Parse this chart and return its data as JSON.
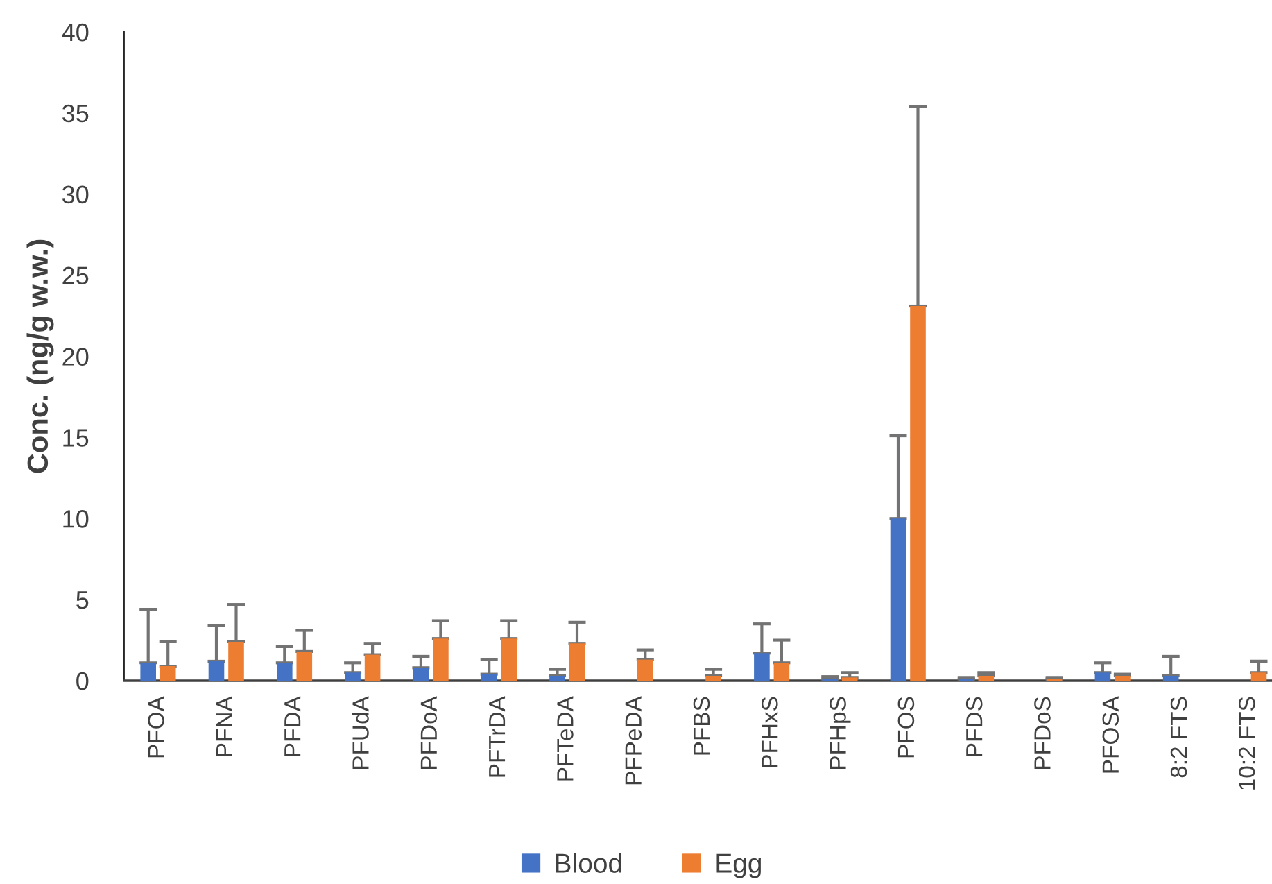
{
  "chart_data": {
    "type": "bar",
    "categories": [
      "PFOA",
      "PFNA",
      "PFDA",
      "PFUdA",
      "PFDoA",
      "PFTrDA",
      "PFTeDA",
      "PFPeDA",
      "PFBS",
      "PFHxS",
      "PFHpS",
      "PFOS",
      "PFDS",
      "PFDoS",
      "PFOSA",
      "8:2 FTS",
      "10:2 FTS"
    ],
    "ylabel": "Conc. (ng/g w.w.)",
    "ylim": [
      0,
      40
    ],
    "yticks": [
      0,
      5,
      10,
      15,
      20,
      25,
      30,
      35,
      40
    ],
    "legend": "bottom",
    "series": [
      {
        "name": "Blood",
        "color": "#4472c4",
        "values": [
          1.1,
          1.2,
          1.1,
          0.5,
          0.8,
          0.4,
          0.3,
          null,
          null,
          1.7,
          0.1,
          10.0,
          0.1,
          null,
          0.5,
          0.3,
          null
        ],
        "errors": [
          [
            1.1,
            4.4
          ],
          [
            1.2,
            3.4
          ],
          [
            1.1,
            2.1
          ],
          [
            0.5,
            1.1
          ],
          [
            0.8,
            1.5
          ],
          [
            0.4,
            1.3
          ],
          [
            0.3,
            0.7
          ],
          null,
          null,
          [
            1.7,
            3.5
          ],
          [
            0.1,
            0.25
          ],
          [
            10.0,
            15.1
          ],
          [
            0.1,
            0.2
          ],
          null,
          [
            0.5,
            1.1
          ],
          [
            0.3,
            1.5
          ],
          null
        ]
      },
      {
        "name": "Egg",
        "color": "#ed7d31",
        "values": [
          0.9,
          2.4,
          1.8,
          1.6,
          2.6,
          2.6,
          2.3,
          1.3,
          0.3,
          1.1,
          0.2,
          23.1,
          0.3,
          0.1,
          0.3,
          null,
          0.5
        ],
        "errors": [
          [
            0.9,
            2.4
          ],
          [
            2.4,
            4.7
          ],
          [
            1.8,
            3.1
          ],
          [
            1.6,
            2.3
          ],
          [
            2.6,
            3.7
          ],
          [
            2.6,
            3.7
          ],
          [
            2.3,
            3.6
          ],
          [
            1.3,
            1.9
          ],
          [
            0.3,
            0.7
          ],
          [
            1.1,
            2.5
          ],
          [
            0.2,
            0.5
          ],
          [
            23.1,
            35.4
          ],
          [
            0.3,
            0.5
          ],
          [
            0.1,
            0.2
          ],
          [
            0.3,
            0.4
          ],
          null,
          [
            0.5,
            1.2
          ]
        ]
      }
    ]
  }
}
